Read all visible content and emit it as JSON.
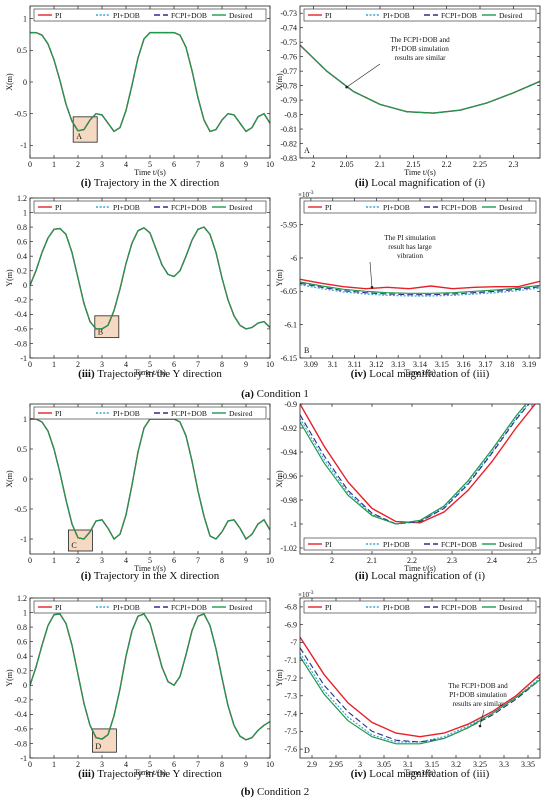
{
  "figure": {
    "condition_captions": [
      {
        "letter": "(a)",
        "text": " Condition 1"
      },
      {
        "letter": "(b)",
        "text": " Condition 2"
      }
    ],
    "legend_labels": [
      "PI",
      "PI+DOB",
      "FCPI+DOB",
      "Desired"
    ],
    "colors": {
      "PI": "#e8202a",
      "PI+DOB": "#3aa6d8",
      "FCPI+DOB": "#2c2e8a",
      "Desired": "#1f9a4a",
      "box_fill": "#f6d9c2",
      "box_stroke": "#222222"
    }
  },
  "chart_data": [
    {
      "id": "c1i",
      "type": "line",
      "caption_index": "(i)",
      "caption_text": " Trajectory in the X direction",
      "xlabel": "Time t/(s)",
      "ylabel": "X(m)",
      "xlim": [
        0,
        10
      ],
      "ylim": [
        -1.2,
        1.2
      ],
      "xticks": [
        "0",
        "1",
        "2",
        "3",
        "4",
        "5",
        "6",
        "7",
        "8",
        "9",
        "10"
      ],
      "yticks": [
        "1",
        "0.5",
        "0",
        "-0.5",
        "-1"
      ],
      "ytick_values": [
        1,
        0.5,
        0,
        -0.5,
        -1
      ],
      "xtick_values": [
        0,
        1,
        2,
        3,
        4,
        5,
        6,
        7,
        8,
        9,
        10
      ],
      "x": [
        0,
        0.25,
        0.5,
        0.75,
        1,
        1.25,
        1.5,
        1.75,
        2,
        2.25,
        2.5,
        2.75,
        3,
        3.25,
        3.5,
        3.75,
        4,
        4.25,
        4.5,
        4.75,
        5,
        5.25,
        5.5,
        5.75,
        6,
        6.25,
        6.5,
        6.75,
        7,
        7.25,
        7.5,
        7.75,
        8,
        8.25,
        8.5,
        8.75,
        9,
        9.25,
        9.5,
        9.75,
        10
      ],
      "y": [
        0.78,
        0.78,
        0.74,
        0.6,
        0.35,
        0.02,
        -0.35,
        -0.62,
        -0.77,
        -0.75,
        -0.6,
        -0.5,
        -0.52,
        -0.65,
        -0.78,
        -0.72,
        -0.45,
        -0.05,
        0.38,
        0.68,
        0.78,
        0.78,
        0.78,
        0.78,
        0.78,
        0.74,
        0.55,
        0.18,
        -0.25,
        -0.6,
        -0.78,
        -0.75,
        -0.6,
        -0.5,
        -0.52,
        -0.65,
        -0.78,
        -0.72,
        -0.55,
        -0.5,
        -0.65
      ],
      "box": {
        "label": "A",
        "x0": 1.8,
        "x1": 2.8,
        "y0": -0.95,
        "y1": -0.55
      },
      "legend_position": "top"
    },
    {
      "id": "c1ii",
      "type": "line",
      "caption_index": "(ii)",
      "caption_text": " Local magnification of (i)",
      "xlabel": "Time t/(s)",
      "ylabel": "X(m)",
      "xlim": [
        1.98,
        2.34
      ],
      "ylim": [
        -0.83,
        -0.725
      ],
      "xticks": [
        "2",
        "2.05",
        "2.1",
        "2.15",
        "2.2",
        "2.25",
        "2.3"
      ],
      "xtick_values": [
        2,
        2.05,
        2.1,
        2.15,
        2.2,
        2.25,
        2.3
      ],
      "yticks": [
        "-0.73",
        "-0.74",
        "-0.75",
        "-0.76",
        "-0.77",
        "-0.78",
        "-0.79",
        "-0.8",
        "-0.81",
        "-0.82",
        "-0.83"
      ],
      "ytick_values": [
        -0.73,
        -0.74,
        -0.75,
        -0.76,
        -0.77,
        -0.78,
        -0.79,
        -0.8,
        -0.81,
        -0.82,
        -0.83
      ],
      "x": [
        1.98,
        2.02,
        2.06,
        2.1,
        2.14,
        2.18,
        2.22,
        2.26,
        2.3,
        2.34
      ],
      "y": [
        -0.752,
        -0.77,
        -0.784,
        -0.793,
        -0.798,
        -0.799,
        -0.797,
        -0.792,
        -0.785,
        -0.777
      ],
      "annotation": [
        "The FCPI+DOB and",
        "PI+DOB simulation",
        "results are similar"
      ],
      "corner_label": "A",
      "legend_position": "top"
    },
    {
      "id": "c1iii",
      "type": "line",
      "caption_index": "(iii)",
      "caption_text": " Trajectory in the Y direction",
      "xlabel": "Time t/(s)",
      "ylabel": "Y(m)",
      "xlim": [
        0,
        10
      ],
      "ylim": [
        -1,
        1.2
      ],
      "xticks": [
        "0",
        "1",
        "2",
        "3",
        "4",
        "5",
        "6",
        "7",
        "8",
        "9",
        "10"
      ],
      "xtick_values": [
        0,
        1,
        2,
        3,
        4,
        5,
        6,
        7,
        8,
        9,
        10
      ],
      "yticks": [
        "1.2",
        "1",
        "0.8",
        "0.6",
        "0.4",
        "0.2",
        "0",
        "-0.2",
        "-0.4",
        "-0.6",
        "-0.8",
        "-1"
      ],
      "ytick_values": [
        1.2,
        1,
        0.8,
        0.6,
        0.4,
        0.2,
        0,
        -0.2,
        -0.4,
        -0.6,
        -0.8,
        -1
      ],
      "x": [
        0,
        0.25,
        0.5,
        0.75,
        1,
        1.25,
        1.5,
        1.75,
        2,
        2.25,
        2.5,
        2.75,
        3,
        3.25,
        3.5,
        3.75,
        4,
        4.25,
        4.5,
        4.75,
        5,
        5.25,
        5.5,
        5.75,
        6,
        6.25,
        6.5,
        6.75,
        7,
        7.25,
        7.5,
        7.75,
        8,
        8.25,
        8.5,
        8.75,
        9,
        9.25,
        9.5,
        9.75,
        10
      ],
      "y": [
        0,
        0.2,
        0.45,
        0.65,
        0.77,
        0.78,
        0.7,
        0.45,
        0.1,
        -0.25,
        -0.5,
        -0.6,
        -0.6,
        -0.55,
        -0.35,
        -0.05,
        0.3,
        0.58,
        0.75,
        0.79,
        0.72,
        0.5,
        0.28,
        0.15,
        0.12,
        0.2,
        0.4,
        0.62,
        0.77,
        0.8,
        0.7,
        0.45,
        0.1,
        -0.2,
        -0.42,
        -0.55,
        -0.6,
        -0.58,
        -0.52,
        -0.5,
        -0.58
      ],
      "box": {
        "label": "B",
        "x0": 2.7,
        "x1": 3.7,
        "y0": -0.72,
        "y1": -0.42
      },
      "legend_position": "top"
    },
    {
      "id": "c1iv",
      "type": "line",
      "caption_index": "(iv)",
      "caption_text": " Local magnification of (iii)",
      "xlabel": "Time t/(s)",
      "ylabel": "Y(m)",
      "multiplier": "×10",
      "multiplier_exp": "-3",
      "xlim": [
        3.085,
        3.195
      ],
      "ylim": [
        -6.15,
        -5.91
      ],
      "xticks": [
        "3.09",
        "3.1",
        "3.11",
        "3.12",
        "3.13",
        "3.14",
        "3.15",
        "3.16",
        "3.17",
        "3.18",
        "3.19"
      ],
      "xtick_values": [
        3.09,
        3.1,
        3.11,
        3.12,
        3.13,
        3.14,
        3.15,
        3.16,
        3.17,
        3.18,
        3.19
      ],
      "yticks": [
        "-5.95",
        "-6",
        "-6.05",
        "-6.1",
        "-6.15"
      ],
      "ytick_values": [
        -5.95,
        -6,
        -6.05,
        -6.1,
        -6.15
      ],
      "x": [
        3.085,
        3.095,
        3.105,
        3.115,
        3.125,
        3.135,
        3.145,
        3.155,
        3.165,
        3.175,
        3.185,
        3.195
      ],
      "series_y": {
        "PI": [
          -6.032,
          -6.038,
          -6.043,
          -6.046,
          -6.044,
          -6.046,
          -6.042,
          -6.046,
          -6.044,
          -6.043,
          -6.043,
          -6.035
        ],
        "PI+DOB": [
          -6.04,
          -6.046,
          -6.051,
          -6.054,
          -6.056,
          -6.057,
          -6.057,
          -6.056,
          -6.054,
          -6.052,
          -6.049,
          -6.045
        ],
        "FCPI+DOB": [
          -6.038,
          -6.044,
          -6.049,
          -6.052,
          -6.054,
          -6.055,
          -6.055,
          -6.054,
          -6.052,
          -6.05,
          -6.047,
          -6.043
        ],
        "Desired": [
          -6.036,
          -6.042,
          -6.047,
          -6.05,
          -6.052,
          -6.053,
          -6.053,
          -6.052,
          -6.05,
          -6.048,
          -6.045,
          -6.041
        ]
      },
      "annotation": [
        "The PI simulation",
        "result has large",
        "vibration"
      ],
      "corner_label": "B",
      "legend_position": "top"
    },
    {
      "id": "c2i",
      "type": "line",
      "caption_index": "(i)",
      "caption_text": " Trajectory in the X direction",
      "xlabel": "Time t/(s)",
      "ylabel": "X(m)",
      "xlim": [
        0,
        10
      ],
      "ylim": [
        -1.25,
        1.25
      ],
      "xticks": [
        "0",
        "1",
        "2",
        "3",
        "4",
        "5",
        "6",
        "7",
        "8",
        "9",
        "10"
      ],
      "xtick_values": [
        0,
        1,
        2,
        3,
        4,
        5,
        6,
        7,
        8,
        9,
        10
      ],
      "yticks": [
        "1",
        "0.5",
        "0",
        "-0.5",
        "-1"
      ],
      "ytick_values": [
        1,
        0.5,
        0,
        -0.5,
        -1
      ],
      "x": [
        0,
        0.25,
        0.5,
        0.75,
        1,
        1.25,
        1.5,
        1.75,
        2,
        2.25,
        2.5,
        2.75,
        3,
        3.25,
        3.5,
        3.75,
        4,
        4.25,
        4.5,
        4.75,
        5,
        5.25,
        5.5,
        5.75,
        6,
        6.25,
        6.5,
        6.75,
        7,
        7.25,
        7.5,
        7.75,
        8,
        8.25,
        8.5,
        8.75,
        9,
        9.25,
        9.5,
        9.75,
        10
      ],
      "y": [
        1,
        1,
        0.95,
        0.8,
        0.5,
        0.1,
        -0.35,
        -0.75,
        -0.98,
        -1,
        -0.88,
        -0.7,
        -0.68,
        -0.82,
        -1,
        -0.92,
        -0.6,
        -0.1,
        0.45,
        0.85,
        1,
        1,
        1,
        1,
        1,
        0.95,
        0.72,
        0.3,
        -0.2,
        -0.62,
        -0.95,
        -1,
        -0.88,
        -0.7,
        -0.68,
        -0.82,
        -1,
        -0.92,
        -0.75,
        -0.68,
        -0.85
      ],
      "box": {
        "label": "C",
        "x0": 1.6,
        "x1": 2.6,
        "y0": -1.2,
        "y1": -0.85
      },
      "legend_position": "top"
    },
    {
      "id": "c2ii",
      "type": "line",
      "caption_index": "(ii)",
      "caption_text": " Local magnification of (i)",
      "xlabel": "Time t/(s)",
      "ylabel": "X(m)",
      "xlim": [
        1.92,
        2.52
      ],
      "ylim": [
        -1.025,
        -0.9
      ],
      "xticks": [
        "2",
        "2.1",
        "2.2",
        "2.3",
        "2.4",
        "2.5"
      ],
      "xtick_values": [
        2,
        2.1,
        2.2,
        2.3,
        2.4,
        2.5
      ],
      "yticks": [
        "-0.9",
        "-0.92",
        "-0.94",
        "-0.96",
        "-0.98",
        "-1",
        "-1.02"
      ],
      "ytick_values": [
        -0.9,
        -0.92,
        -0.94,
        -0.96,
        -0.98,
        -1,
        -1.02
      ],
      "x": [
        1.92,
        1.98,
        2.04,
        2.1,
        2.16,
        2.22,
        2.28,
        2.34,
        2.4,
        2.46,
        2.52
      ],
      "series_y": {
        "PI": [
          -0.9,
          -0.935,
          -0.965,
          -0.987,
          -0.998,
          -0.999,
          -0.99,
          -0.972,
          -0.948,
          -0.92,
          -0.895
        ],
        "PI+DOB": [
          -0.912,
          -0.946,
          -0.974,
          -0.992,
          -1.0,
          -0.998,
          -0.986,
          -0.966,
          -0.94,
          -0.912,
          -0.888
        ],
        "FCPI+DOB": [
          -0.909,
          -0.943,
          -0.972,
          -0.991,
          -1.0,
          -0.998,
          -0.987,
          -0.967,
          -0.941,
          -0.913,
          -0.889
        ],
        "Desired": [
          -0.915,
          -0.949,
          -0.976,
          -0.993,
          -1.0,
          -0.997,
          -0.985,
          -0.964,
          -0.938,
          -0.91,
          -0.886
        ]
      },
      "corner_label": "C",
      "legend_position": "bottom"
    },
    {
      "id": "c2iii",
      "type": "line",
      "caption_index": "(iii)",
      "caption_text": " Trajectory in the Y direction",
      "xlabel": "Time t/(s)",
      "ylabel": "Y(m)",
      "xlim": [
        0,
        10
      ],
      "ylim": [
        -1,
        1.2
      ],
      "xticks": [
        "0",
        "1",
        "2",
        "3",
        "4",
        "5",
        "6",
        "7",
        "8",
        "9",
        "10"
      ],
      "xtick_values": [
        0,
        1,
        2,
        3,
        4,
        5,
        6,
        7,
        8,
        9,
        10
      ],
      "yticks": [
        "1.2",
        "1",
        "0.8",
        "0.6",
        "0.4",
        "0.2",
        "0",
        "-0.2",
        "-0.4",
        "-0.6",
        "-0.8",
        "-1"
      ],
      "ytick_values": [
        1.2,
        1,
        0.8,
        0.6,
        0.4,
        0.2,
        0,
        -0.2,
        -0.4,
        -0.6,
        -0.8,
        -1
      ],
      "x": [
        0,
        0.25,
        0.5,
        0.75,
        1,
        1.25,
        1.5,
        1.75,
        2,
        2.25,
        2.5,
        2.75,
        3,
        3.25,
        3.5,
        3.75,
        4,
        4.25,
        4.5,
        4.75,
        5,
        5.25,
        5.5,
        5.75,
        6,
        6.25,
        6.5,
        6.75,
        7,
        7.25,
        7.5,
        7.75,
        8,
        8.25,
        8.5,
        8.75,
        9,
        9.25,
        9.5,
        9.75,
        10
      ],
      "y": [
        0,
        0.25,
        0.55,
        0.82,
        0.97,
        0.98,
        0.85,
        0.55,
        0.15,
        -0.25,
        -0.55,
        -0.72,
        -0.74,
        -0.68,
        -0.42,
        -0.05,
        0.4,
        0.75,
        0.95,
        0.98,
        0.85,
        0.55,
        0.25,
        0.05,
        0,
        0.12,
        0.42,
        0.75,
        0.95,
        0.98,
        0.82,
        0.5,
        0.1,
        -0.28,
        -0.55,
        -0.7,
        -0.75,
        -0.72,
        -0.62,
        -0.55,
        -0.5
      ],
      "box": {
        "label": "D",
        "x0": 2.6,
        "x1": 3.6,
        "y0": -0.92,
        "y1": -0.6
      },
      "legend_position": "top"
    },
    {
      "id": "c2iv",
      "type": "line",
      "caption_index": "(iv)",
      "caption_text": " Local magnification of (iii)",
      "xlabel": "Time t/(s)",
      "ylabel": "Y(m)",
      "multiplier": "×10",
      "multiplier_exp": "-3",
      "xlim": [
        2.875,
        3.375
      ],
      "ylim": [
        -7.65,
        -6.75
      ],
      "xticks": [
        "2.9",
        "2.95",
        "3",
        "3.05",
        "3.1",
        "3.15",
        "3.2",
        "3.25",
        "3.3",
        "3.35"
      ],
      "xtick_values": [
        2.9,
        2.95,
        3,
        3.05,
        3.1,
        3.15,
        3.2,
        3.25,
        3.3,
        3.35
      ],
      "yticks": [
        "-6.8",
        "-6.9",
        "-7",
        "-7.1",
        "-7.2",
        "-7.3",
        "-7.4",
        "-7.5",
        "-7.6"
      ],
      "ytick_values": [
        -6.8,
        -6.9,
        -7,
        -7.1,
        -7.2,
        -7.3,
        -7.4,
        -7.5,
        -7.6
      ],
      "x": [
        2.875,
        2.925,
        2.975,
        3.025,
        3.075,
        3.125,
        3.175,
        3.225,
        3.275,
        3.325,
        3.375
      ],
      "series_y": {
        "PI": [
          -6.97,
          -7.18,
          -7.34,
          -7.45,
          -7.51,
          -7.53,
          -7.51,
          -7.46,
          -7.39,
          -7.3,
          -7.18
        ],
        "PI+DOB": [
          -7.06,
          -7.27,
          -7.42,
          -7.52,
          -7.56,
          -7.56,
          -7.53,
          -7.47,
          -7.4,
          -7.31,
          -7.2
        ],
        "FCPI+DOB": [
          -7.03,
          -7.24,
          -7.39,
          -7.5,
          -7.55,
          -7.56,
          -7.54,
          -7.48,
          -7.41,
          -7.32,
          -7.21
        ],
        "Desired": [
          -7.08,
          -7.29,
          -7.44,
          -7.53,
          -7.57,
          -7.57,
          -7.54,
          -7.48,
          -7.4,
          -7.31,
          -7.21
        ]
      },
      "annotation": [
        "The FCPI+DOB and",
        "PI+DOB simulation",
        "results are  similar"
      ],
      "corner_label": "D",
      "legend_position": "top"
    }
  ]
}
